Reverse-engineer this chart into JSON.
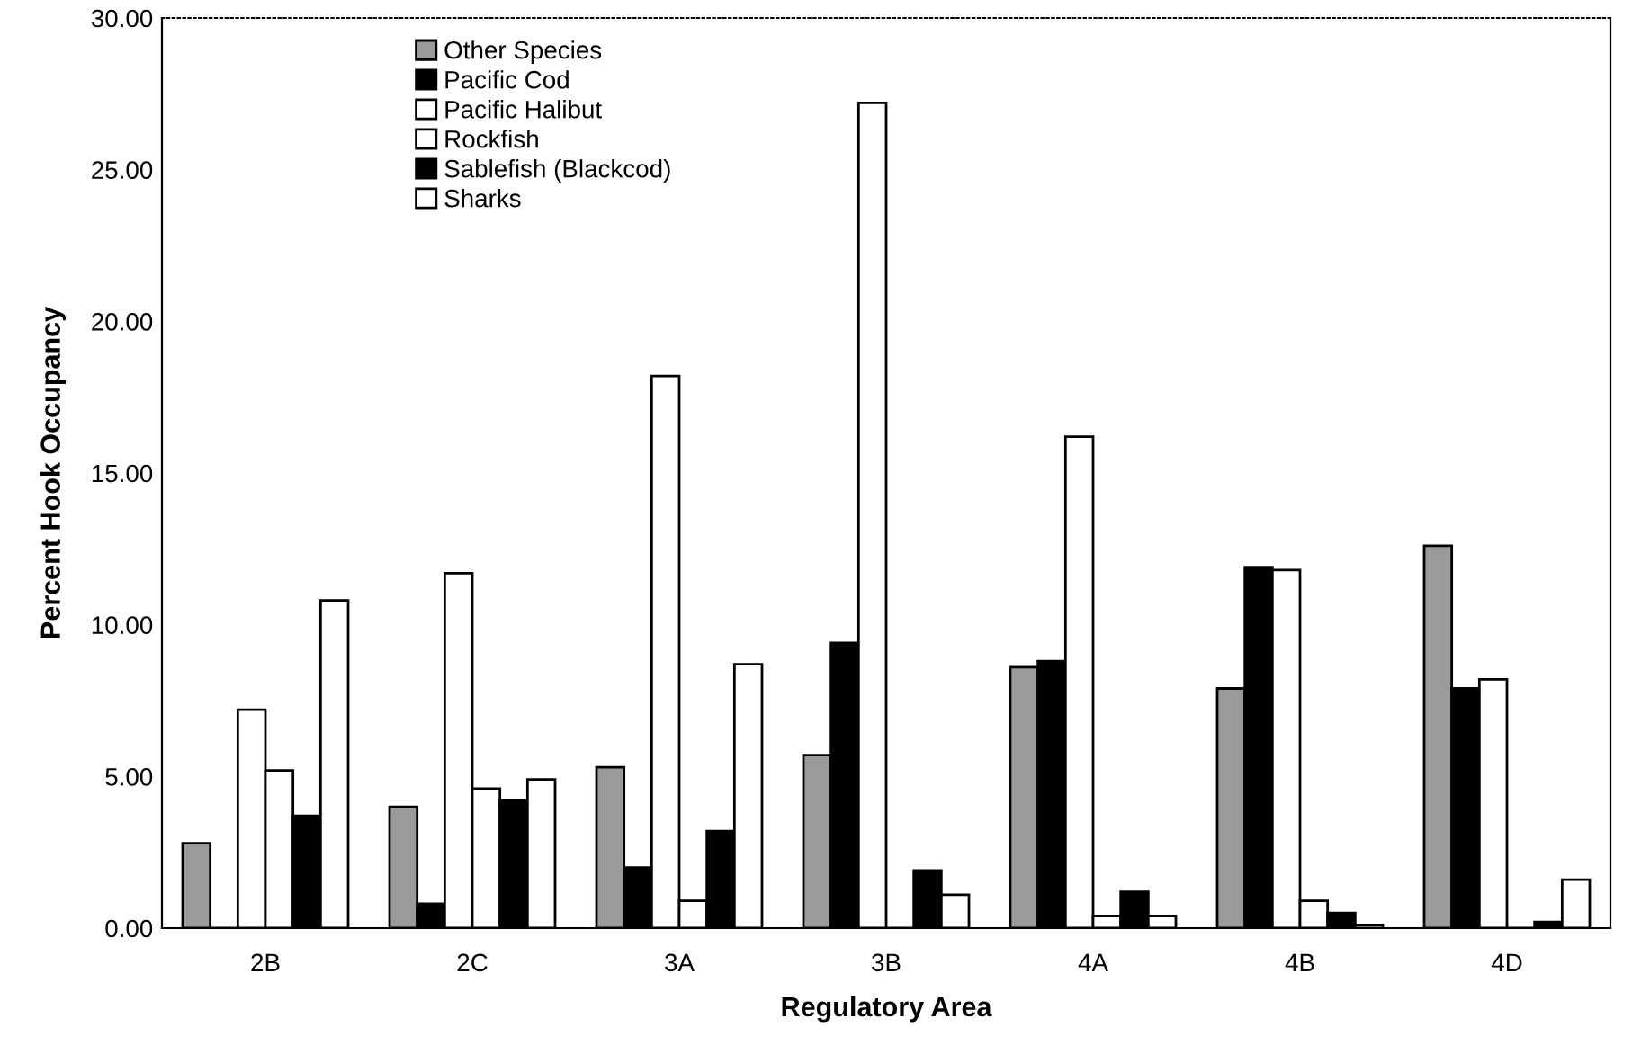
{
  "chart_data": {
    "type": "bar",
    "xlabel": "Regulatory Area",
    "ylabel": "Percent Hook Occupancy",
    "categories": [
      "2B",
      "2C",
      "3A",
      "3B",
      "4A",
      "4B",
      "4D"
    ],
    "series": [
      {
        "name": "Other Species",
        "color": "#9a9a9a",
        "values": [
          2.8,
          4.0,
          5.3,
          5.7,
          8.6,
          7.9,
          12.6
        ]
      },
      {
        "name": "Pacific Cod",
        "color": "#000000",
        "values": [
          0,
          0.8,
          2.0,
          9.4,
          8.8,
          11.9,
          7.9
        ]
      },
      {
        "name": "Pacific Halibut",
        "color": "#ffffff",
        "values": [
          7.2,
          11.7,
          18.2,
          27.2,
          16.2,
          11.8,
          8.2
        ]
      },
      {
        "name": "Rockfish",
        "color": "#ffffff",
        "values": [
          5.2,
          4.6,
          0.9,
          null,
          0.4,
          0.9,
          null
        ]
      },
      {
        "name": "Sablefish (Blackcod)",
        "color": "#000000",
        "values": [
          3.7,
          4.2,
          3.2,
          1.9,
          1.2,
          0.5,
          0.2
        ]
      },
      {
        "name": "Sharks",
        "color": "#ffffff",
        "values": [
          10.8,
          4.9,
          8.7,
          1.1,
          0.4,
          0.1,
          1.6
        ]
      }
    ],
    "ylim": [
      0,
      30
    ],
    "yticks": [
      {
        "value": 0,
        "label": "0.00"
      },
      {
        "value": 5,
        "label": "5.00"
      },
      {
        "value": 10,
        "label": "10.00"
      },
      {
        "value": 15,
        "label": "15.00"
      },
      {
        "value": 20,
        "label": "20.00"
      },
      {
        "value": 25,
        "label": "25.00"
      },
      {
        "value": 30,
        "label": "30.00"
      }
    ],
    "grid": false,
    "legend": "top left"
  }
}
